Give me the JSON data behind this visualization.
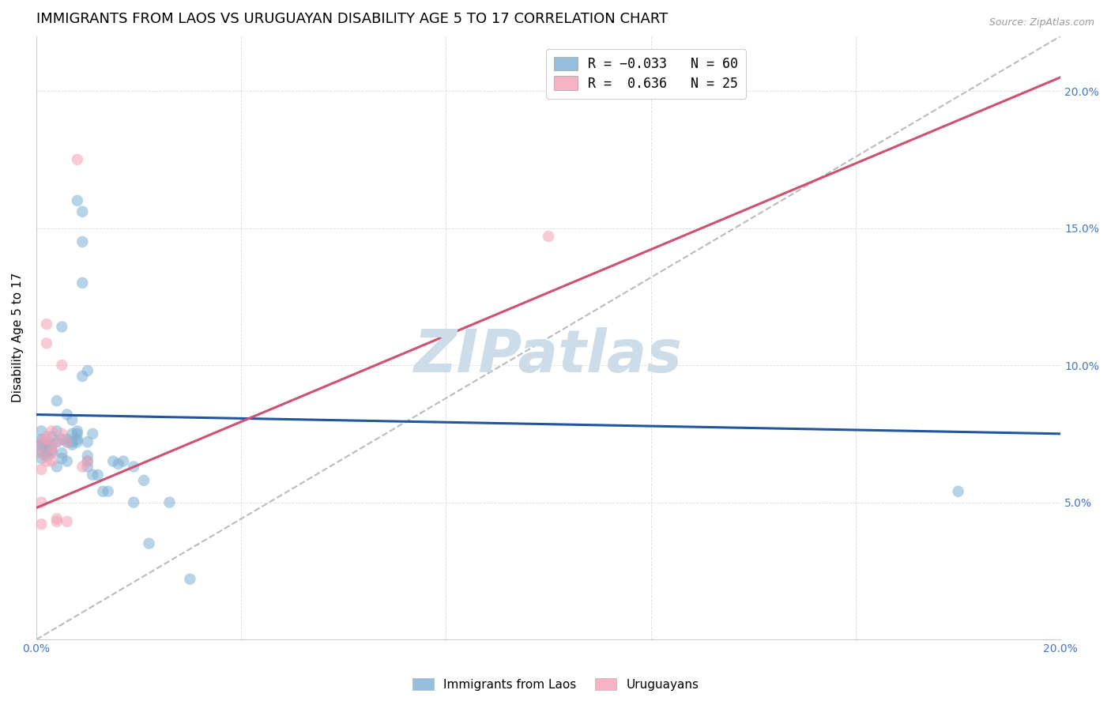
{
  "title": "IMMIGRANTS FROM LAOS VS URUGUAYAN DISABILITY AGE 5 TO 17 CORRELATION CHART",
  "source": "Source: ZipAtlas.com",
  "ylabel": "Disability Age 5 to 17",
  "x_min": 0.0,
  "x_max": 0.2,
  "y_min": 0.0,
  "y_max": 0.22,
  "x_ticks": [
    0.0,
    0.04,
    0.08,
    0.12,
    0.16,
    0.2
  ],
  "x_tick_labels": [
    "0.0%",
    "",
    "",
    "",
    "",
    "20.0%"
  ],
  "y_ticks": [
    0.0,
    0.05,
    0.1,
    0.15,
    0.2
  ],
  "y_tick_labels_right": [
    "",
    "5.0%",
    "10.0%",
    "15.0%",
    "20.0%"
  ],
  "blue_line": [
    [
      0.0,
      0.082
    ],
    [
      0.2,
      0.075
    ]
  ],
  "pink_line": [
    [
      0.0,
      0.048
    ],
    [
      0.2,
      0.205
    ]
  ],
  "blue_scatter": [
    [
      0.001,
      0.072
    ],
    [
      0.001,
      0.069
    ],
    [
      0.001,
      0.073
    ],
    [
      0.001,
      0.066
    ],
    [
      0.001,
      0.068
    ],
    [
      0.001,
      0.071
    ],
    [
      0.001,
      0.076
    ],
    [
      0.002,
      0.07
    ],
    [
      0.002,
      0.072
    ],
    [
      0.002,
      0.067
    ],
    [
      0.002,
      0.068
    ],
    [
      0.003,
      0.069
    ],
    [
      0.003,
      0.071
    ],
    [
      0.003,
      0.074
    ],
    [
      0.003,
      0.068
    ],
    [
      0.004,
      0.072
    ],
    [
      0.004,
      0.087
    ],
    [
      0.004,
      0.076
    ],
    [
      0.004,
      0.063
    ],
    [
      0.005,
      0.068
    ],
    [
      0.005,
      0.066
    ],
    [
      0.005,
      0.114
    ],
    [
      0.005,
      0.073
    ],
    [
      0.006,
      0.072
    ],
    [
      0.006,
      0.073
    ],
    [
      0.006,
      0.065
    ],
    [
      0.006,
      0.082
    ],
    [
      0.007,
      0.071
    ],
    [
      0.007,
      0.08
    ],
    [
      0.007,
      0.072
    ],
    [
      0.007,
      0.075
    ],
    [
      0.008,
      0.073
    ],
    [
      0.008,
      0.075
    ],
    [
      0.008,
      0.076
    ],
    [
      0.008,
      0.072
    ],
    [
      0.008,
      0.16
    ],
    [
      0.009,
      0.156
    ],
    [
      0.009,
      0.145
    ],
    [
      0.009,
      0.13
    ],
    [
      0.009,
      0.096
    ],
    [
      0.01,
      0.098
    ],
    [
      0.01,
      0.072
    ],
    [
      0.01,
      0.067
    ],
    [
      0.01,
      0.063
    ],
    [
      0.01,
      0.065
    ],
    [
      0.011,
      0.075
    ],
    [
      0.011,
      0.06
    ],
    [
      0.012,
      0.06
    ],
    [
      0.013,
      0.054
    ],
    [
      0.014,
      0.054
    ],
    [
      0.015,
      0.065
    ],
    [
      0.016,
      0.064
    ],
    [
      0.017,
      0.065
    ],
    [
      0.019,
      0.05
    ],
    [
      0.019,
      0.063
    ],
    [
      0.021,
      0.058
    ],
    [
      0.022,
      0.035
    ],
    [
      0.026,
      0.05
    ],
    [
      0.03,
      0.022
    ],
    [
      0.18,
      0.054
    ]
  ],
  "pink_scatter": [
    [
      0.001,
      0.042
    ],
    [
      0.001,
      0.062
    ],
    [
      0.001,
      0.072
    ],
    [
      0.001,
      0.068
    ],
    [
      0.001,
      0.05
    ],
    [
      0.002,
      0.065
    ],
    [
      0.002,
      0.074
    ],
    [
      0.002,
      0.073
    ],
    [
      0.002,
      0.108
    ],
    [
      0.002,
      0.115
    ],
    [
      0.003,
      0.065
    ],
    [
      0.003,
      0.068
    ],
    [
      0.003,
      0.07
    ],
    [
      0.003,
      0.076
    ],
    [
      0.004,
      0.044
    ],
    [
      0.004,
      0.043
    ],
    [
      0.004,
      0.072
    ],
    [
      0.005,
      0.075
    ],
    [
      0.005,
      0.1
    ],
    [
      0.006,
      0.072
    ],
    [
      0.006,
      0.043
    ],
    [
      0.008,
      0.175
    ],
    [
      0.009,
      0.063
    ],
    [
      0.01,
      0.065
    ],
    [
      0.1,
      0.147
    ]
  ],
  "watermark_text": "ZIPatlas",
  "watermark_color": "#ccdce8",
  "background_color": "#ffffff",
  "grid_color": "#cccccc",
  "blue_color": "#7bafd4",
  "pink_color": "#f4a0b4",
  "blue_line_color": "#2255a0",
  "pink_line_color": "#d05070",
  "diagonal_color": "#bbbbbb",
  "title_fontsize": 13,
  "axis_label_fontsize": 11,
  "tick_fontsize": 10,
  "marker_size": 110,
  "marker_alpha": 0.55
}
